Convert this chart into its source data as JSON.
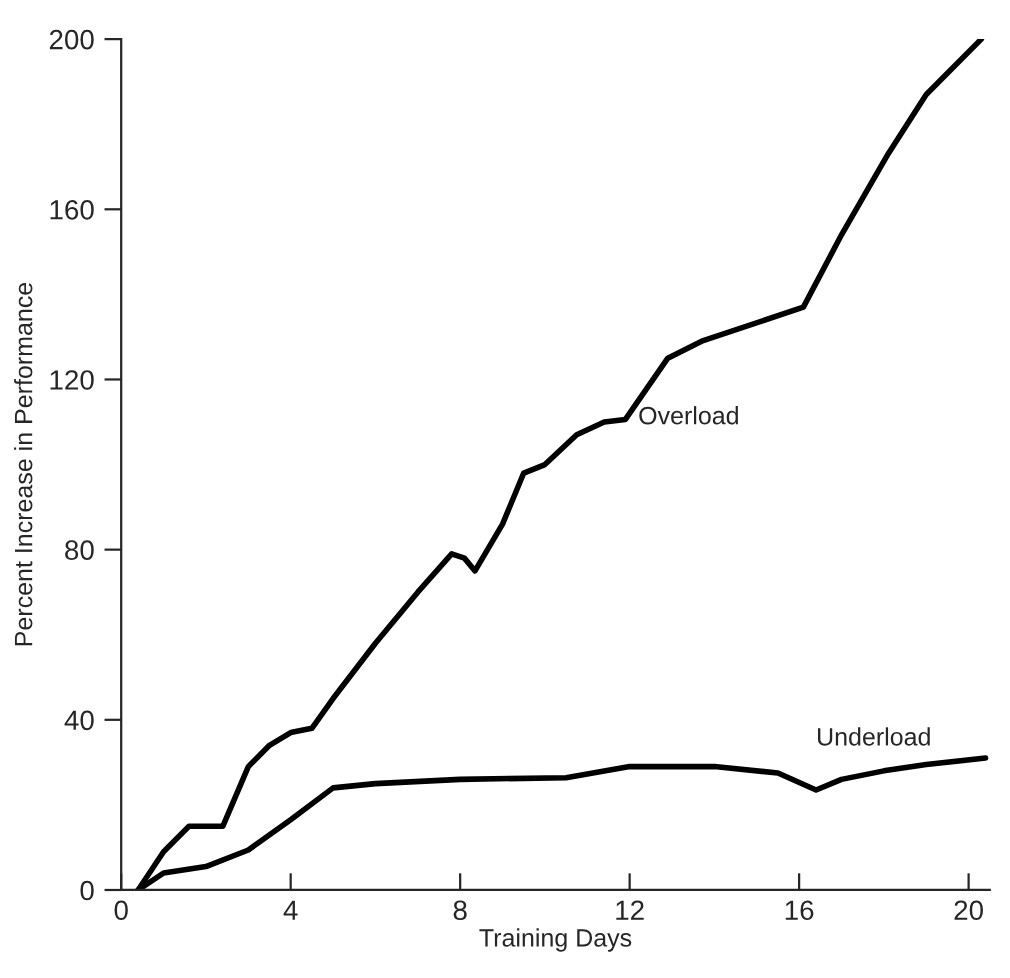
{
  "chart_data": {
    "type": "line",
    "xlabel": "Training Days",
    "ylabel": "Percent Increase in Performance",
    "xlim": [
      0,
      20.5
    ],
    "ylim": [
      0,
      200
    ],
    "xticks": [
      0,
      4,
      8,
      12,
      16,
      20
    ],
    "yticks": [
      0,
      40,
      80,
      120,
      160,
      200
    ],
    "grid": false,
    "legend": false,
    "series": [
      {
        "name": "Overload",
        "color": "#000000",
        "x": [
          0.4,
          1,
          1.6,
          2.4,
          3,
          3.5,
          4,
          4.5,
          5,
          6,
          7,
          7.8,
          8.1,
          8.35,
          9,
          9.5,
          10,
          10.75,
          11.4,
          11.9,
          12.9,
          13.7,
          16.1,
          17,
          18.1,
          19,
          20.3
        ],
        "values": [
          0,
          9,
          15,
          15,
          29,
          34,
          37,
          38,
          45,
          58,
          70,
          79,
          78,
          75,
          86,
          98,
          100,
          107,
          110,
          110.6,
          125,
          129,
          137,
          154,
          173,
          187,
          200
        ]
      },
      {
        "name": "Underload",
        "color": "#000000",
        "x": [
          0.4,
          1,
          2,
          3,
          4,
          5,
          6,
          8,
          10.5,
          12,
          14,
          15.5,
          16.4,
          17,
          18,
          19,
          20.4
        ],
        "values": [
          0,
          4,
          5.5,
          9.4,
          16.5,
          24,
          25,
          26,
          26.4,
          29,
          29,
          27.5,
          23.5,
          26,
          28,
          29.5,
          31
        ]
      }
    ]
  }
}
